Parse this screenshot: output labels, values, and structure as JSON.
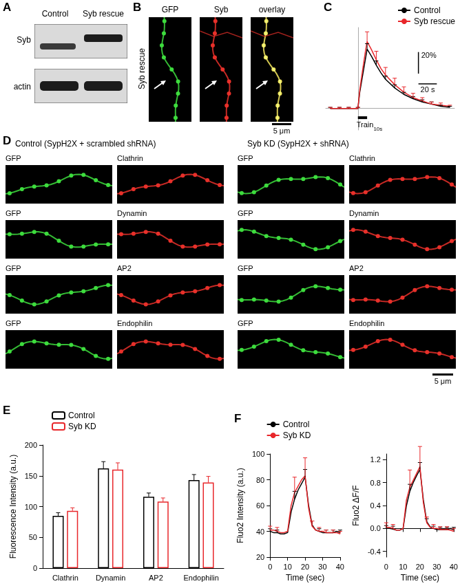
{
  "panels": {
    "A": {
      "letter": "A",
      "columns": [
        "Control",
        "Syb rescue"
      ],
      "rows": [
        "Syb",
        "actin"
      ]
    },
    "B": {
      "letter": "B",
      "row_label": "Syb rescue",
      "columns": [
        "GFP",
        "Syb",
        "overlay"
      ],
      "scale_bar": "5 μm"
    },
    "C": {
      "letter": "C"
    },
    "D": {
      "letter": "D",
      "groups": [
        {
          "title": "Control (SypH2X + scrambled shRNA)",
          "rows": [
            [
              "GFP",
              "Clathrin"
            ],
            [
              "GFP",
              "Dynamin"
            ],
            [
              "GFP",
              "AP2"
            ],
            [
              "GFP",
              "Endophilin"
            ]
          ]
        },
        {
          "title": "Syb KD (SypH2X + shRNA)",
          "rows": [
            [
              "GFP",
              "Clathrin"
            ],
            [
              "GFP",
              "Dynamin"
            ],
            [
              "GFP",
              "AP2"
            ],
            [
              "GFP",
              "Endophilin"
            ]
          ]
        }
      ],
      "scale_bar": "5 μm"
    },
    "E": {
      "letter": "E"
    },
    "F": {
      "letter": "F"
    }
  },
  "chart_data": [
    {
      "type": "line",
      "x": [
        -30,
        -25,
        -20,
        -15,
        -10,
        -5,
        0,
        2,
        5,
        8,
        10,
        15,
        20,
        25,
        30,
        40,
        50,
        60,
        70,
        80,
        90,
        100
      ],
      "series": [
        {
          "name": "Control",
          "color": "#000000",
          "values": [
            0,
            0,
            0,
            0,
            0,
            0,
            0,
            15,
            30,
            45,
            55,
            48,
            40,
            33,
            27,
            19,
            13,
            9,
            6,
            4,
            2,
            1
          ],
          "errors": [
            1,
            null,
            1,
            null,
            1,
            null,
            1,
            null,
            null,
            null,
            5,
            null,
            4,
            null,
            3,
            3,
            2,
            2,
            2,
            2,
            1,
            1
          ]
        },
        {
          "name": "Syb rescue",
          "color": "#e8262a",
          "values": [
            0,
            0,
            0,
            0,
            0,
            0,
            0,
            17,
            35,
            52,
            62,
            54,
            45,
            37,
            31,
            22,
            15,
            10,
            7,
            4,
            3,
            2
          ],
          "errors": [
            1,
            null,
            1,
            null,
            1,
            null,
            1,
            null,
            null,
            null,
            9,
            null,
            8,
            null,
            7,
            6,
            5,
            4,
            3,
            2,
            2,
            1
          ]
        }
      ],
      "xlim": [
        -35,
        105
      ],
      "ylim": [
        -20,
        75
      ],
      "xticks": [],
      "yticks": [],
      "tick_labels": false,
      "grid": false,
      "legend": "top-right",
      "scale_bars": [
        {
          "axis": "y",
          "length": 20,
          "label": "20%"
        },
        {
          "axis": "x",
          "length": 20,
          "label": "20 s"
        }
      ],
      "stimulus": {
        "start": 0,
        "end": 10,
        "label": "Train",
        "label_sub": "10s"
      }
    },
    {
      "type": "bar",
      "categories": [
        "Clathrin",
        "Dynamin",
        "AP2",
        "Endophilin"
      ],
      "series": [
        {
          "name": "Control",
          "color": "#000000",
          "values": [
            85,
            162,
            116,
            143
          ],
          "errors": [
            5,
            11,
            6,
            9
          ]
        },
        {
          "name": "Syb KD",
          "color": "#e8262a",
          "values": [
            93,
            160,
            108,
            139
          ],
          "errors": [
            5,
            11,
            6,
            10
          ]
        }
      ],
      "ylabel": "Fluorescence Intensity (a.u.)",
      "ylim": [
        0,
        200
      ],
      "yticks": [
        0,
        50,
        100,
        150,
        200
      ],
      "grid": false,
      "legend": "top-left"
    },
    {
      "type": "line",
      "x": [
        0,
        2,
        4,
        6,
        8,
        10,
        12,
        14,
        16,
        18,
        20,
        22,
        24,
        26,
        28,
        30,
        32,
        34,
        36,
        38,
        40
      ],
      "series": [
        {
          "name": "Control",
          "color": "#000000",
          "values": [
            40,
            39,
            39,
            38,
            38,
            39,
            55,
            65,
            72,
            77,
            82,
            60,
            45,
            41,
            40,
            39,
            39,
            39,
            39,
            40,
            39
          ],
          "errors": [
            2,
            null,
            2,
            null,
            null,
            null,
            null,
            6,
            null,
            null,
            6,
            null,
            3,
            null,
            2,
            null,
            2,
            null,
            2,
            null,
            2
          ]
        },
        {
          "name": "Syb KD",
          "color": "#e8262a",
          "values": [
            41,
            41,
            40,
            39,
            39,
            40,
            60,
            70,
            75,
            80,
            83,
            58,
            44,
            41,
            40,
            40,
            39,
            39,
            39,
            39,
            38
          ],
          "errors": [
            3,
            null,
            3,
            null,
            null,
            null,
            null,
            12,
            null,
            null,
            14,
            null,
            4,
            null,
            3,
            null,
            2,
            null,
            2,
            null,
            2
          ]
        }
      ],
      "xlabel": "Time (sec)",
      "ylabel": "Fluo2 Intensity (a.u.)",
      "xlim": [
        0,
        40
      ],
      "xticks": [
        0,
        10,
        20,
        30,
        40
      ],
      "ylim": [
        20,
        100
      ],
      "yticks": [
        20,
        40,
        60,
        80,
        100
      ],
      "grid": false,
      "legend": "top"
    },
    {
      "type": "line",
      "x": [
        0,
        2,
        4,
        6,
        8,
        10,
        12,
        14,
        16,
        18,
        20,
        22,
        24,
        26,
        28,
        30,
        32,
        34,
        36,
        38,
        40
      ],
      "series": [
        {
          "name": "Control",
          "color": "#000000",
          "values": [
            0,
            0,
            -0.01,
            -0.03,
            -0.03,
            0,
            0.4,
            0.65,
            0.8,
            0.92,
            1.03,
            0.5,
            0.12,
            0.03,
            0,
            -0.02,
            -0.02,
            -0.02,
            -0.02,
            0,
            -0.02
          ],
          "errors": [
            0.05,
            null,
            0.05,
            null,
            null,
            null,
            null,
            0.12,
            null,
            null,
            0.12,
            null,
            0.05,
            null,
            0.04,
            null,
            0.04,
            null,
            0.04,
            null,
            0.04
          ]
        },
        {
          "name": "Syb KD",
          "color": "#e8262a",
          "values": [
            0.02,
            0.02,
            0,
            -0.03,
            -0.03,
            0,
            0.5,
            0.72,
            0.84,
            0.96,
            1.08,
            0.45,
            0.1,
            0.02,
            0,
            0,
            -0.02,
            -0.02,
            -0.02,
            -0.03,
            -0.05
          ],
          "errors": [
            0.08,
            null,
            0.07,
            null,
            null,
            null,
            null,
            0.3,
            null,
            null,
            0.35,
            null,
            0.1,
            null,
            0.07,
            null,
            0.05,
            null,
            0.05,
            null,
            0.05
          ]
        }
      ],
      "xlabel": "Time (sec)",
      "ylabel": "Fluo2 ΔF/F",
      "xlim": [
        0,
        40
      ],
      "xticks": [
        0,
        10,
        20,
        30,
        40
      ],
      "ylim": [
        -0.5,
        1.3
      ],
      "yticks": [
        -0.4,
        {
          "value": 0,
          "label": "0.0"
        },
        0.4,
        0.8,
        1.2
      ],
      "grid": false,
      "legend": false
    }
  ]
}
